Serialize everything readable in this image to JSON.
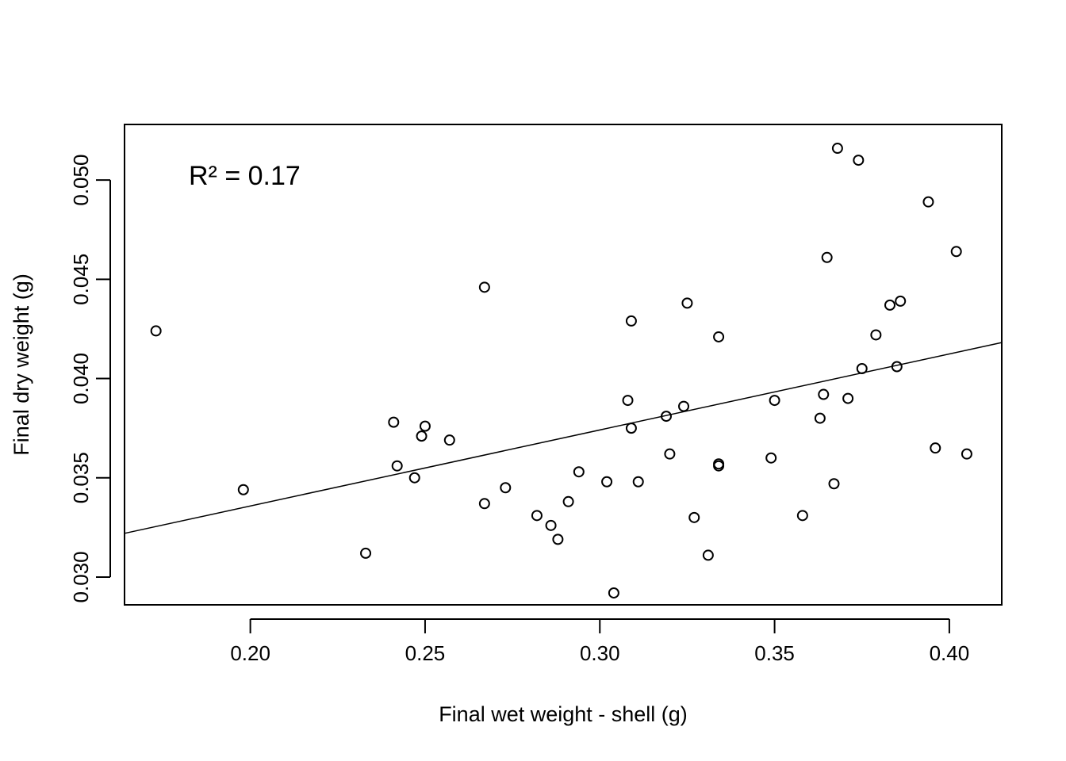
{
  "chart_data": {
    "type": "scatter",
    "title": "",
    "xlabel": "Final wet weight - shell (g)",
    "ylabel": "Final dry weight (g)",
    "xlim": [
      0.164,
      0.415
    ],
    "ylim": [
      0.0286,
      0.0528
    ],
    "xticks": [
      "0.20",
      "0.25",
      "0.30",
      "0.35",
      "0.40"
    ],
    "yticks": [
      "0.030",
      "0.035",
      "0.040",
      "0.045",
      "0.050"
    ],
    "grid": false,
    "annotation": "R² = 0.17",
    "trendline": {
      "slope": 0.0383,
      "intercept": 0.02592
    },
    "points": [
      [
        0.173,
        0.0424
      ],
      [
        0.198,
        0.0344
      ],
      [
        0.233,
        0.0312
      ],
      [
        0.241,
        0.0378
      ],
      [
        0.242,
        0.0356
      ],
      [
        0.247,
        0.035
      ],
      [
        0.249,
        0.0371
      ],
      [
        0.25,
        0.0376
      ],
      [
        0.257,
        0.0369
      ],
      [
        0.267,
        0.0337
      ],
      [
        0.267,
        0.0446
      ],
      [
        0.273,
        0.0345
      ],
      [
        0.282,
        0.0331
      ],
      [
        0.286,
        0.0326
      ],
      [
        0.288,
        0.0319
      ],
      [
        0.291,
        0.0338
      ],
      [
        0.294,
        0.0353
      ],
      [
        0.302,
        0.0348
      ],
      [
        0.304,
        0.0292
      ],
      [
        0.308,
        0.0389
      ],
      [
        0.309,
        0.0429
      ],
      [
        0.309,
        0.0375
      ],
      [
        0.311,
        0.0348
      ],
      [
        0.319,
        0.0381
      ],
      [
        0.32,
        0.0362
      ],
      [
        0.324,
        0.0386
      ],
      [
        0.325,
        0.0438
      ],
      [
        0.327,
        0.033
      ],
      [
        0.331,
        0.0311
      ],
      [
        0.334,
        0.0357
      ],
      [
        0.334,
        0.0356
      ],
      [
        0.334,
        0.0421
      ],
      [
        0.349,
        0.036
      ],
      [
        0.35,
        0.0389
      ],
      [
        0.358,
        0.0331
      ],
      [
        0.363,
        0.038
      ],
      [
        0.364,
        0.0392
      ],
      [
        0.365,
        0.0461
      ],
      [
        0.367,
        0.0347
      ],
      [
        0.368,
        0.0516
      ],
      [
        0.371,
        0.039
      ],
      [
        0.374,
        0.051
      ],
      [
        0.375,
        0.0405
      ],
      [
        0.379,
        0.0422
      ],
      [
        0.383,
        0.0437
      ],
      [
        0.385,
        0.0406
      ],
      [
        0.386,
        0.0439
      ],
      [
        0.394,
        0.0489
      ],
      [
        0.396,
        0.0365
      ],
      [
        0.402,
        0.0464
      ],
      [
        0.405,
        0.0362
      ]
    ]
  }
}
